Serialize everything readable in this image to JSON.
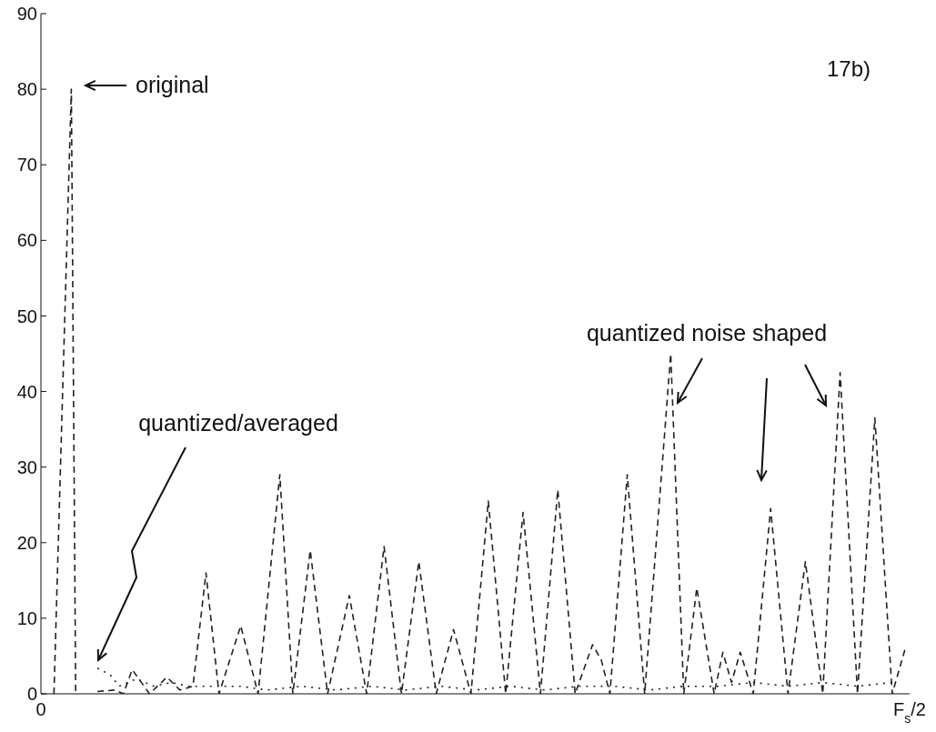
{
  "chart_data": {
    "type": "line",
    "categories": [
      "0",
      null,
      null,
      null,
      null,
      null,
      null,
      null,
      null,
      null,
      null,
      null,
      null,
      null,
      null,
      null,
      null,
      null,
      null,
      null,
      null,
      null,
      null,
      null,
      null,
      null,
      null,
      null,
      null,
      null,
      null,
      null,
      null,
      null,
      null,
      null,
      null,
      null,
      null,
      null,
      null,
      null,
      null,
      null,
      null,
      null,
      null,
      null,
      null,
      null,
      null,
      null,
      null,
      null,
      null,
      null,
      null,
      null,
      null,
      null,
      null,
      null,
      null,
      null,
      null,
      null,
      null,
      null,
      null,
      null,
      null,
      null,
      null,
      null,
      null,
      null,
      null,
      null,
      null,
      null,
      null,
      null,
      null,
      null,
      null,
      null,
      null,
      null,
      null,
      null,
      null,
      null,
      null,
      null,
      null,
      null,
      null,
      null,
      null,
      null,
      null,
      null,
      null,
      null,
      null,
      null,
      null,
      null,
      null,
      null,
      null,
      null,
      null,
      null,
      null,
      null,
      null,
      null,
      null,
      null,
      null,
      null,
      null,
      null,
      null,
      null,
      null,
      null,
      null,
      null,
      null,
      null,
      null,
      null,
      null,
      null,
      null,
      null,
      null,
      null,
      null,
      null,
      null,
      null,
      null,
      null,
      null,
      null,
      null,
      null,
      null,
      null,
      null,
      null,
      null,
      null,
      null,
      null,
      null,
      null,
      null,
      null,
      null,
      null,
      null,
      null,
      null,
      null,
      null,
      null,
      null,
      null,
      null,
      null,
      null,
      null,
      null,
      null,
      null,
      null,
      null,
      null,
      null,
      null,
      null,
      null,
      null,
      null,
      null,
      null,
      null,
      null,
      null,
      null,
      null,
      null,
      null,
      null,
      null,
      null,
      "F$_{s}$/2"
    ],
    "ylim": [
      0,
      90
    ],
    "yticks": [
      0,
      10,
      20,
      30,
      40,
      50,
      60,
      70,
      80,
      90
    ],
    "series": [
      {
        "color": "#222222",
        "line_style": "dashed",
        "values": [
          null,
          null,
          null,
          0,
          null,
          null,
          null,
          80,
          0,
          null,
          null,
          null,
          null,
          null,
          null,
          null,
          null,
          null,
          null,
          null,
          null,
          null,
          null,
          null,
          null,
          null,
          null,
          null,
          null,
          null,
          null,
          null,
          null,
          null,
          null,
          null,
          null,
          null,
          null,
          null,
          null,
          null,
          null,
          null,
          null,
          null,
          null,
          null,
          null,
          null,
          null,
          null,
          null,
          null,
          null,
          null,
          null,
          null,
          null,
          null,
          null,
          null,
          null,
          null,
          null,
          null,
          null,
          null,
          null,
          null,
          null,
          null,
          null,
          null,
          null,
          null,
          null,
          null,
          null,
          null,
          null,
          null,
          null,
          null,
          null,
          null,
          null,
          null,
          null,
          null,
          null,
          null,
          null,
          null,
          null,
          null,
          null,
          null,
          null,
          null,
          null,
          null,
          null,
          null,
          null,
          null,
          null,
          null,
          null,
          null,
          null,
          null,
          null,
          null,
          null,
          null,
          null,
          null,
          null,
          null,
          null,
          null,
          null,
          null,
          null,
          null,
          null,
          null,
          null,
          null,
          null,
          null,
          null,
          null,
          null,
          null,
          null,
          null,
          null,
          null,
          null,
          null,
          null,
          null,
          null,
          null,
          null,
          null,
          null,
          null,
          null,
          null,
          null,
          null,
          null,
          null,
          null,
          null,
          null,
          null,
          null,
          null,
          null,
          null,
          null,
          null,
          null,
          null,
          null,
          null,
          null,
          null,
          null,
          null,
          null,
          null,
          null,
          null,
          null,
          null,
          null,
          null,
          null,
          null,
          null,
          null,
          null,
          null,
          null,
          null,
          null,
          null,
          null,
          null,
          null,
          null,
          null,
          null,
          null,
          null,
          null
        ]
      },
      {
        "color": "#222222",
        "line_style": "dashed",
        "values": [
          null,
          null,
          null,
          null,
          null,
          null,
          null,
          null,
          null,
          null,
          null,
          null,
          null,
          0.3,
          null,
          null,
          null,
          0.5,
          null,
          0,
          null,
          3.2,
          null,
          null,
          null,
          0,
          null,
          null,
          null,
          2.2,
          null,
          null,
          0.5,
          null,
          null,
          1,
          null,
          null,
          16,
          null,
          null,
          0,
          null,
          null,
          null,
          null,
          9,
          null,
          null,
          null,
          0,
          null,
          null,
          null,
          null,
          29,
          null,
          null,
          0,
          null,
          null,
          null,
          19,
          null,
          null,
          null,
          0,
          null,
          null,
          null,
          null,
          13,
          null,
          null,
          null,
          0,
          null,
          null,
          null,
          19.5,
          null,
          null,
          null,
          0,
          null,
          null,
          null,
          17.5,
          null,
          null,
          null,
          0,
          null,
          null,
          null,
          8.5,
          null,
          null,
          null,
          0,
          null,
          null,
          null,
          25.5,
          null,
          null,
          null,
          0,
          null,
          null,
          null,
          24,
          null,
          null,
          null,
          0,
          null,
          null,
          null,
          27,
          null,
          null,
          null,
          0,
          null,
          null,
          null,
          6.5,
          null,
          4.5,
          null,
          0,
          null,
          null,
          null,
          29,
          null,
          null,
          null,
          0,
          null,
          null,
          null,
          null,
          null,
          45,
          null,
          null,
          0,
          null,
          null,
          14,
          null,
          null,
          null,
          0,
          null,
          5.5,
          null,
          1.5,
          null,
          5.5,
          null,
          null,
          0,
          null,
          null,
          null,
          24.5,
          null,
          null,
          null,
          0,
          null,
          null,
          null,
          17.5,
          null,
          null,
          null,
          0,
          null,
          null,
          null,
          42.5,
          null,
          null,
          null,
          0,
          null,
          null,
          null,
          36.5,
          null,
          null,
          null,
          0,
          null,
          null,
          6,
          null
        ]
      },
      {
        "color": "#222222",
        "line_style": "dotted",
        "values": [
          null,
          null,
          null,
          null,
          null,
          null,
          null,
          null,
          null,
          null,
          null,
          null,
          null,
          3.4,
          null,
          null,
          2.5,
          null,
          1,
          null,
          null,
          null,
          2,
          null,
          null,
          null,
          1,
          null,
          null,
          null,
          1.5,
          null,
          null,
          null,
          1,
          null,
          null,
          null,
          null,
          null,
          1,
          null,
          null,
          null,
          null,
          null,
          1,
          null,
          null,
          null,
          null,
          null,
          0.5,
          null,
          null,
          null,
          null,
          null,
          null,
          null,
          1,
          null,
          null,
          null,
          null,
          null,
          null,
          null,
          0.5,
          null,
          null,
          null,
          null,
          null,
          null,
          null,
          1,
          null,
          null,
          null,
          null,
          null,
          null,
          null,
          0.5,
          null,
          null,
          null,
          null,
          null,
          null,
          null,
          1,
          null,
          null,
          null,
          null,
          null,
          null,
          null,
          0.5,
          null,
          null,
          null,
          null,
          null,
          null,
          null,
          1,
          null,
          null,
          null,
          null,
          null,
          null,
          null,
          0.5,
          null,
          null,
          null,
          null,
          null,
          null,
          null,
          1,
          null,
          null,
          null,
          null,
          null,
          null,
          null,
          1,
          null,
          null,
          null,
          null,
          null,
          null,
          null,
          0.5,
          null,
          null,
          null,
          null,
          null,
          null,
          null,
          1,
          null,
          null,
          null,
          null,
          null,
          null,
          null,
          1,
          null,
          null,
          null,
          null,
          null,
          null,
          null,
          1.5,
          null,
          null,
          null,
          null,
          null,
          null,
          null,
          1,
          null,
          null,
          null,
          null,
          null,
          null,
          null,
          1.5,
          null,
          null,
          null,
          null,
          null,
          null,
          null,
          1,
          null,
          null,
          null,
          null,
          null,
          null,
          null,
          1.5,
          null,
          null,
          null,
          null
        ]
      }
    ],
    "annotations": [
      "original",
      "quantized/averaged",
      "quantized noise shaped",
      "17b)"
    ]
  }
}
